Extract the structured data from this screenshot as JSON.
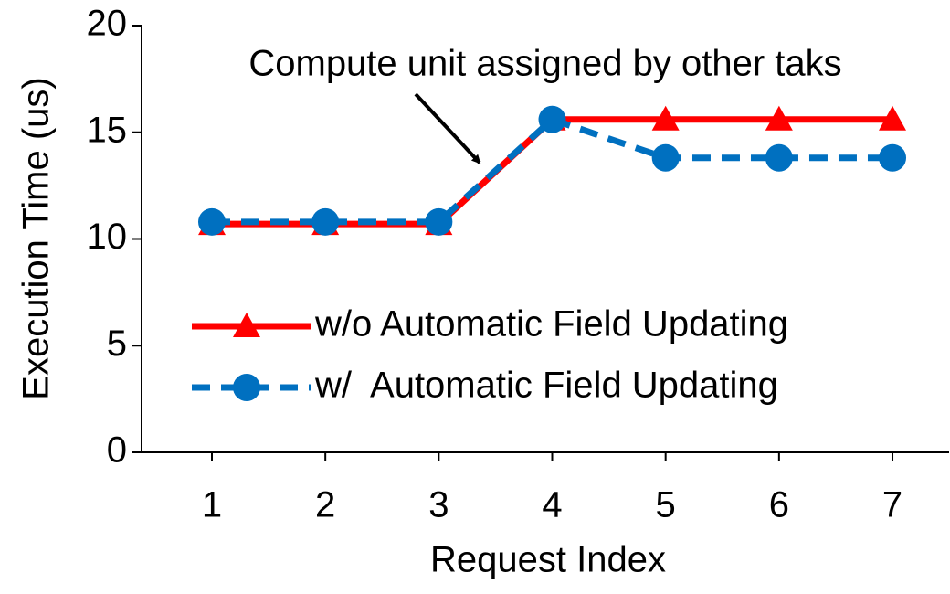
{
  "chart_data": {
    "type": "line",
    "annotation": "Compute unit assigned by other taks",
    "xlabel": "Request Index",
    "ylabel": "Execution Time (us)",
    "categories": [
      "1",
      "2",
      "3",
      "4",
      "5",
      "6",
      "7"
    ],
    "series": [
      {
        "name": "w/o Automatic Field Updating",
        "color": "#ff0000",
        "marker": "triangle",
        "linestyle": "solid",
        "values": [
          10.7,
          10.7,
          10.7,
          15.6,
          15.6,
          15.6,
          15.6
        ]
      },
      {
        "name": "w/  Automatic Field Updating",
        "color": "#0070c0",
        "marker": "circle",
        "linestyle": "dashed",
        "values": [
          10.8,
          10.8,
          10.8,
          15.6,
          13.8,
          13.8,
          13.8
        ]
      }
    ],
    "ylim": [
      0,
      20
    ],
    "yticks": [
      0,
      5,
      10,
      15,
      20
    ]
  }
}
